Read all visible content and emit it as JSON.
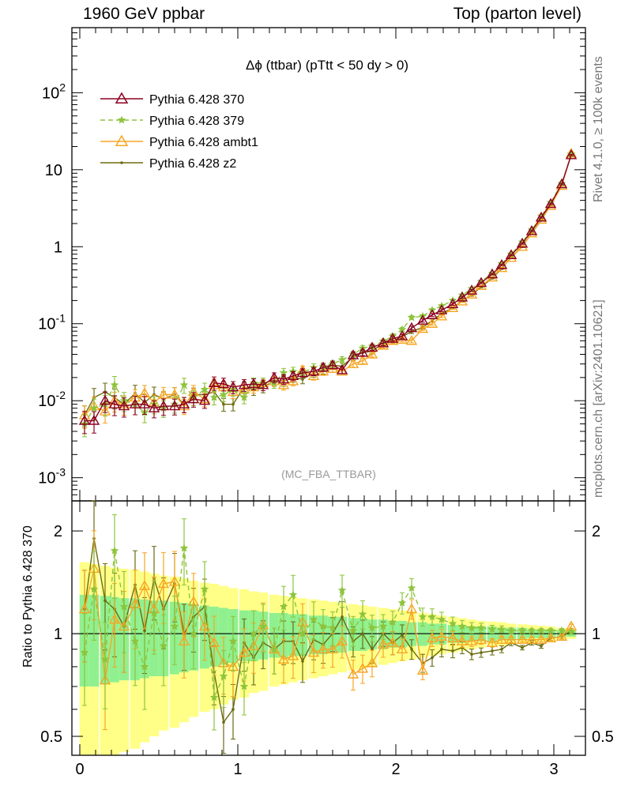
{
  "header": {
    "left": "1960 GeV ppbar",
    "right": "Top (parton level)"
  },
  "side_labels": {
    "rivet": "Rivet 4.1.0, ≥ 100k events",
    "mcplots": "mcplots.cern.ch [arXiv:2401.10621]"
  },
  "chart_data": [
    {
      "type": "line",
      "panel": "main",
      "title": "Δϕ (ttbar) (pTtt < 50 dy > 0)",
      "watermark": "(MC_FBA_TTBAR)",
      "xlabel": "",
      "ylabel": "",
      "yscale": "log",
      "ylim": [
        0.0005,
        700
      ],
      "xlim": [
        -0.05,
        3.2
      ],
      "y_tick_labels": [
        "10^-3",
        "10^-2",
        "10^-1",
        "1",
        "10",
        "10^2"
      ],
      "x": [
        0.03,
        0.09,
        0.16,
        0.22,
        0.28,
        0.35,
        0.41,
        0.47,
        0.53,
        0.6,
        0.66,
        0.72,
        0.79,
        0.85,
        0.91,
        0.97,
        1.04,
        1.1,
        1.16,
        1.23,
        1.29,
        1.35,
        1.41,
        1.48,
        1.54,
        1.6,
        1.66,
        1.73,
        1.79,
        1.85,
        1.92,
        1.98,
        2.04,
        2.1,
        2.17,
        2.23,
        2.29,
        2.36,
        2.42,
        2.48,
        2.54,
        2.61,
        2.67,
        2.73,
        2.8,
        2.86,
        2.92,
        2.98,
        3.05,
        3.11
      ],
      "series": [
        {
          "name": "Pythia 6.428 370",
          "color": "#8b0020",
          "marker": "triangle-open",
          "dash": "solid",
          "values": [
            0.0055,
            0.0055,
            0.01,
            0.009,
            0.0085,
            0.009,
            0.009,
            0.008,
            0.0085,
            0.0085,
            0.009,
            0.0105,
            0.01,
            0.017,
            0.0165,
            0.015,
            0.016,
            0.0165,
            0.016,
            0.02,
            0.019,
            0.021,
            0.023,
            0.024,
            0.027,
            0.029,
            0.025,
            0.039,
            0.042,
            0.049,
            0.056,
            0.064,
            0.069,
            0.088,
            0.11,
            0.13,
            0.15,
            0.18,
            0.22,
            0.27,
            0.34,
            0.44,
            0.58,
            0.78,
            1.1,
            1.6,
            2.4,
            3.6,
            6.5,
            15.5
          ]
        },
        {
          "name": "Pythia 6.428 379",
          "color": "#8dc43c",
          "marker": "star",
          "dash": "dashed",
          "values": [
            0.005,
            0.008,
            0.009,
            0.016,
            0.01,
            0.009,
            0.007,
            0.009,
            0.008,
            0.009,
            0.016,
            0.011,
            0.014,
            0.011,
            0.012,
            0.014,
            0.011,
            0.017,
            0.017,
            0.017,
            0.023,
            0.024,
            0.023,
            0.027,
            0.028,
            0.03,
            0.034,
            0.04,
            0.048,
            0.051,
            0.059,
            0.069,
            0.084,
            0.12,
            0.125,
            0.15,
            0.17,
            0.2,
            0.235,
            0.285,
            0.355,
            0.45,
            0.6,
            0.8,
            1.15,
            1.65,
            2.5,
            3.75,
            6.6,
            16.0
          ]
        },
        {
          "name": "Pythia 6.428 ambt1",
          "color": "#f5a623",
          "marker": "triangle-open",
          "dash": "solid",
          "values": [
            0.0065,
            0.0085,
            0.0073,
            0.01,
            0.009,
            0.011,
            0.0125,
            0.0095,
            0.012,
            0.012,
            0.0085,
            0.013,
            0.0105,
            0.016,
            0.015,
            0.013,
            0.014,
            0.015,
            0.017,
            0.018,
            0.016,
            0.018,
            0.025,
            0.021,
            0.024,
            0.026,
            0.024,
            0.03,
            0.033,
            0.04,
            0.052,
            0.06,
            0.062,
            0.06,
            0.086,
            0.1,
            0.125,
            0.16,
            0.195,
            0.24,
            0.31,
            0.4,
            0.53,
            0.72,
            1.0,
            1.5,
            2.25,
            3.4,
            6.2,
            16.2
          ]
        },
        {
          "name": "Pythia 6.428 z2",
          "color": "#6b6b10",
          "marker": "dot",
          "dash": "solid",
          "values": [
            0.0065,
            0.011,
            0.013,
            0.011,
            0.009,
            0.0125,
            0.0095,
            0.012,
            0.0105,
            0.012,
            0.009,
            0.012,
            0.012,
            0.013,
            0.009,
            0.009,
            0.015,
            0.014,
            0.015,
            0.018,
            0.018,
            0.02,
            0.019,
            0.023,
            0.025,
            0.029,
            0.028,
            0.037,
            0.042,
            0.044,
            0.056,
            0.06,
            0.068,
            0.079,
            0.09,
            0.11,
            0.135,
            0.16,
            0.2,
            0.235,
            0.3,
            0.39,
            0.52,
            0.73,
            1.0,
            1.5,
            2.2,
            3.5,
            6.4,
            15.8
          ]
        }
      ]
    },
    {
      "type": "line",
      "panel": "ratio",
      "title": "",
      "xlabel": "",
      "ylabel": "Ratio to Pythia 6.428 370",
      "ylim": [
        0.44,
        2.45
      ],
      "xlim": [
        -0.05,
        3.2
      ],
      "y_tick_labels": [
        "0.5",
        "1",
        "2"
      ],
      "x_tick_labels": [
        "0",
        "1",
        "2",
        "3"
      ],
      "x": [
        0.03,
        0.09,
        0.16,
        0.22,
        0.28,
        0.35,
        0.41,
        0.47,
        0.53,
        0.6,
        0.66,
        0.72,
        0.79,
        0.85,
        0.91,
        0.97,
        1.04,
        1.1,
        1.16,
        1.23,
        1.29,
        1.35,
        1.41,
        1.48,
        1.54,
        1.6,
        1.66,
        1.73,
        1.79,
        1.85,
        1.92,
        1.98,
        2.04,
        2.1,
        2.17,
        2.23,
        2.29,
        2.36,
        2.42,
        2.48,
        2.54,
        2.61,
        2.67,
        2.73,
        2.8,
        2.86,
        2.92,
        2.98,
        3.05,
        3.11
      ],
      "band_inner": [
        0.3,
        0.3,
        0.29,
        0.28,
        0.27,
        0.27,
        0.26,
        0.25,
        0.25,
        0.24,
        0.23,
        0.22,
        0.21,
        0.2,
        0.19,
        0.18,
        0.17,
        0.17,
        0.16,
        0.15,
        0.15,
        0.14,
        0.14,
        0.13,
        0.13,
        0.12,
        0.12,
        0.11,
        0.11,
        0.1,
        0.1,
        0.09,
        0.09,
        0.08,
        0.08,
        0.07,
        0.07,
        0.06,
        0.06,
        0.05,
        0.05,
        0.05,
        0.04,
        0.04,
        0.04,
        0.03,
        0.03,
        0.03,
        0.02,
        0.02
      ],
      "band_outer": [
        0.62,
        0.6,
        0.58,
        0.56,
        0.55,
        0.54,
        0.52,
        0.5,
        0.48,
        0.47,
        0.45,
        0.43,
        0.41,
        0.4,
        0.38,
        0.36,
        0.35,
        0.33,
        0.32,
        0.3,
        0.29,
        0.28,
        0.27,
        0.26,
        0.25,
        0.24,
        0.23,
        0.22,
        0.21,
        0.2,
        0.19,
        0.18,
        0.17,
        0.16,
        0.15,
        0.14,
        0.13,
        0.12,
        0.11,
        0.1,
        0.09,
        0.085,
        0.08,
        0.07,
        0.065,
        0.06,
        0.055,
        0.05,
        0.04,
        0.035
      ],
      "series": [
        {
          "name": "Pythia 6.428 379",
          "color": "#8dc43c",
          "marker": "star",
          "dash": "dashed",
          "values": [
            0.88,
            1.35,
            0.84,
            1.75,
            1.2,
            0.95,
            0.8,
            1.15,
            0.92,
            1.05,
            1.78,
            1.0,
            1.35,
            0.65,
            0.75,
            0.95,
            0.7,
            1.0,
            1.05,
            0.9,
            1.2,
            1.3,
            1.0,
            1.1,
            1.05,
            1.04,
            1.34,
            1.02,
            1.14,
            1.04,
            1.05,
            1.08,
            1.23,
            1.36,
            1.12,
            1.12,
            1.1,
            1.07,
            1.05,
            1.04,
            1.04,
            1.03,
            1.03,
            1.02,
            1.02,
            1.02,
            1.02,
            1.02,
            1.02,
            1.01
          ]
        },
        {
          "name": "Pythia 6.428 ambt1",
          "color": "#f5a623",
          "marker": "triangle-open",
          "dash": "solid",
          "values": [
            1.18,
            1.55,
            0.73,
            1.1,
            1.05,
            1.22,
            1.38,
            1.18,
            1.4,
            1.42,
            0.95,
            1.24,
            1.05,
            0.94,
            0.82,
            0.8,
            0.88,
            0.92,
            1.06,
            0.9,
            0.84,
            0.86,
            1.08,
            0.88,
            0.9,
            0.9,
            0.95,
            0.76,
            0.79,
            0.82,
            0.93,
            0.94,
            0.9,
            1.18,
            0.78,
            0.97,
            0.98,
            0.97,
            0.95,
            0.95,
            0.96,
            0.94,
            0.96,
            0.96,
            0.96,
            0.96,
            0.96,
            0.97,
            0.98,
            1.05
          ]
        },
        {
          "name": "Pythia 6.428 z2",
          "color": "#6b6b10",
          "marker": "dot",
          "dash": "solid",
          "values": [
            1.18,
            1.9,
            1.25,
            1.18,
            1.05,
            1.39,
            1.02,
            1.45,
            1.18,
            1.4,
            1.0,
            1.12,
            1.2,
            0.77,
            0.55,
            0.6,
            0.94,
            0.85,
            0.94,
            0.9,
            0.95,
            0.95,
            0.83,
            0.96,
            0.93,
            1.0,
            1.12,
            0.95,
            1.0,
            0.9,
            1.0,
            0.94,
            0.99,
            0.9,
            0.82,
            0.85,
            0.9,
            0.89,
            0.91,
            0.87,
            0.88,
            0.89,
            0.9,
            0.94,
            0.91,
            0.94,
            0.92,
            0.97,
            0.98,
            1.02
          ]
        }
      ]
    }
  ]
}
